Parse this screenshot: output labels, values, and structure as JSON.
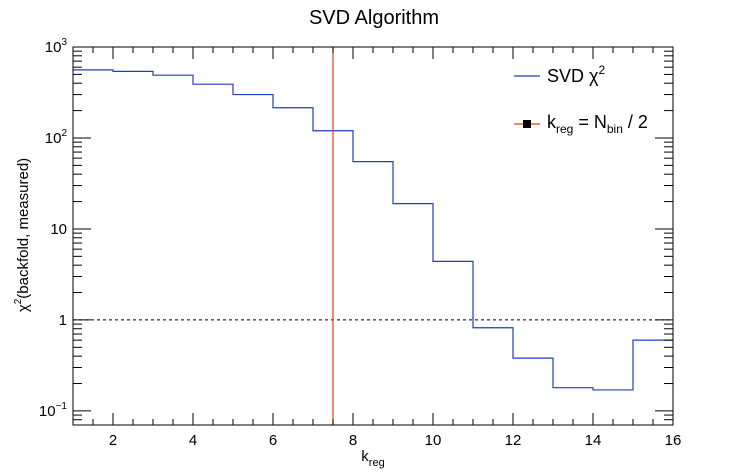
{
  "chart_data": {
    "type": "line",
    "title": "SVD Algorithm",
    "xlabel": {
      "base": "k",
      "sub": "reg"
    },
    "ylabel": {
      "sym": "χ",
      "sup": "2",
      "rest": "(backfold, measured)"
    },
    "xlim": [
      1,
      16
    ],
    "ylim": [
      0.07,
      1000
    ],
    "yscale": "log",
    "grid": false,
    "x_ticks": [
      2,
      4,
      6,
      8,
      10,
      12,
      14,
      16
    ],
    "y_ticks": [
      {
        "value": 0.1,
        "base": "10",
        "exp": "−1"
      },
      {
        "value": 1,
        "base": "1",
        "exp": ""
      },
      {
        "value": 10,
        "base": "10",
        "exp": ""
      },
      {
        "value": 100,
        "base": "10",
        "exp": "2"
      },
      {
        "value": 1000,
        "base": "10",
        "exp": "3"
      }
    ],
    "series": [
      {
        "name": "SVD χ2",
        "color": "#1f3fbf",
        "bin_edges": [
          1,
          2,
          3,
          4,
          5,
          6,
          7,
          8,
          9,
          10,
          11,
          12,
          13,
          14,
          15,
          16
        ],
        "values": [
          560,
          540,
          490,
          390,
          300,
          215,
          120,
          55,
          19,
          4.4,
          0.82,
          0.38,
          0.18,
          0.17,
          0.6
        ]
      }
    ],
    "annotations": [
      {
        "type": "vline",
        "x": 7.5,
        "color": "#e8401c",
        "label": "k_reg = N_bin / 2"
      },
      {
        "type": "hline",
        "y": 1,
        "style": "dashed",
        "color": "#000000"
      }
    ],
    "legend": {
      "position": "top-right",
      "entries": [
        {
          "kind": "line",
          "color": "#1f3fbf",
          "text": {
            "base": "SVD χ",
            "sup": "2"
          }
        },
        {
          "kind": "marker-line",
          "color": "#e8401c",
          "text": {
            "k": "k",
            "ksub": "reg",
            "eq": " = N",
            "nsub": "bin",
            "tail": " / 2"
          }
        }
      ]
    }
  }
}
